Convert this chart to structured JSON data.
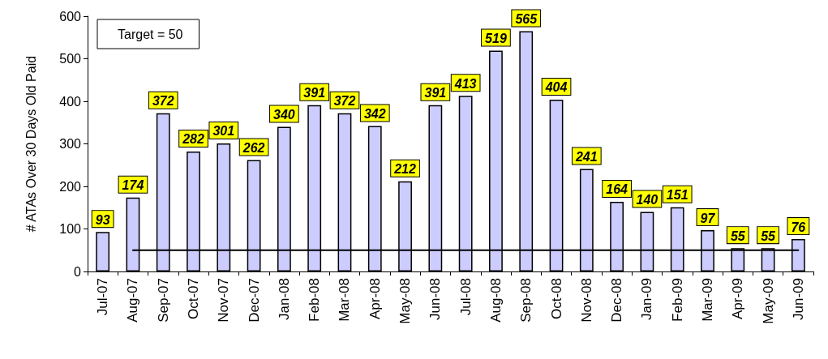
{
  "chart_data": {
    "type": "bar",
    "ylabel": "# ATAs Over 30 Days Old Paid",
    "categories": [
      "Jul-07",
      "Aug-07",
      "Sep-07",
      "Oct-07",
      "Nov-07",
      "Dec-07",
      "Jan-08",
      "Feb-08",
      "Mar-08",
      "Apr-08",
      "May-08",
      "Jun-08",
      "Jul-08",
      "Aug-08",
      "Sep-08",
      "Oct-08",
      "Nov-08",
      "Dec-08",
      "Jan-09",
      "Feb-09",
      "Mar-09",
      "Apr-09",
      "May-09",
      "Jun-09"
    ],
    "series": [
      {
        "color": "#ccccff",
        "values": [
          93,
          174,
          372,
          282,
          301,
          262,
          340,
          391,
          372,
          342,
          212,
          391,
          413,
          519,
          565,
          404,
          241,
          164,
          140,
          151,
          97,
          55,
          55,
          76
        ],
        "value_labels": [
          "93",
          "174",
          "372",
          "282",
          "301",
          "262",
          "340",
          "391",
          "372",
          "342",
          "212",
          "391",
          "413",
          "519",
          "565",
          "404",
          "241",
          "164",
          "140",
          "151",
          "97",
          "55",
          "55",
          "76"
        ]
      },
      {
        "type": "line",
        "name": "Target = 50",
        "color": "#000000",
        "values": [
          null,
          50,
          50,
          50,
          50,
          50,
          50,
          50,
          50,
          50,
          50,
          50,
          50,
          50,
          50,
          50,
          50,
          50,
          50,
          50,
          50,
          50,
          50,
          50
        ]
      }
    ],
    "ylim": [
      0,
      600
    ],
    "yticks": [
      0,
      100,
      200,
      300,
      400,
      500,
      600
    ],
    "grid": false,
    "legend": "top left",
    "marker": "none"
  }
}
